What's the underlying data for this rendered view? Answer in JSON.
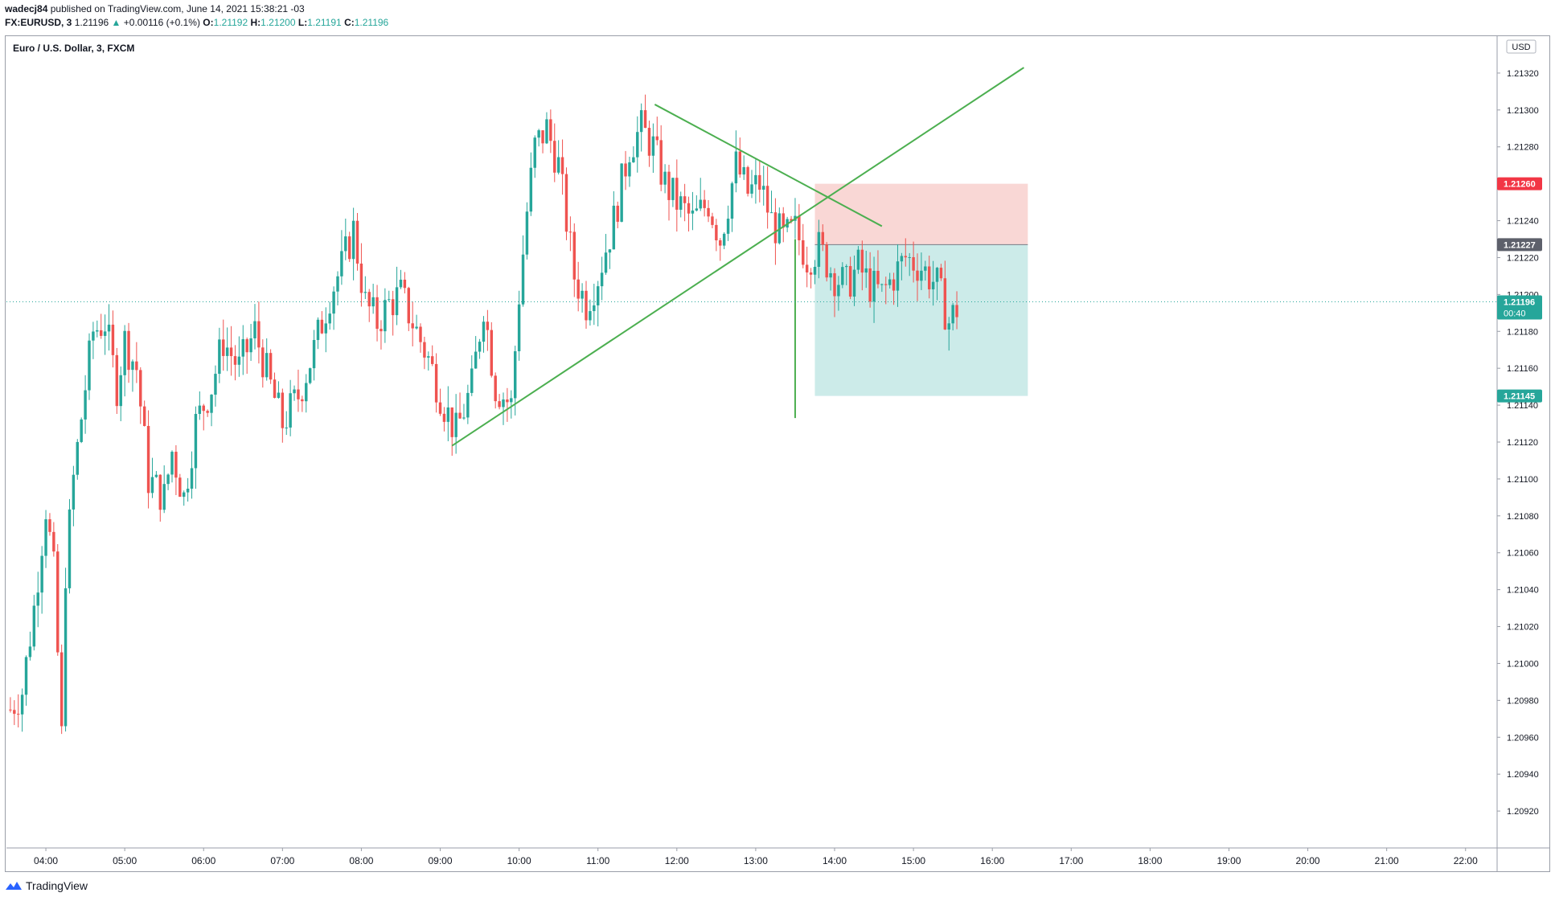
{
  "header": {
    "author": "wadecj84",
    "published": "published on TradingView.com, June 14, 2021 15:38:21 -03",
    "symbol": "FX:EURUSD, 3",
    "last": "1.21196",
    "change_arrow": "▲",
    "change": "+0.00116 (+0.1%)",
    "o_label": "O:",
    "o_val": "1.21192",
    "h_label": "H:",
    "h_val": "1.21200",
    "l_label": "L:",
    "l_val": "1.21191",
    "c_label": "C:",
    "c_val": "1.21196"
  },
  "chart_title": "Euro / U.S. Dollar, 3, FXCM",
  "currency": "USD",
  "footer": {
    "brand": "TradingView",
    "logo_icon": "tradingview-logo-icon"
  },
  "colors": {
    "up": "#26a69a",
    "down": "#ef5350",
    "line": "#4caf50",
    "stop": "#f7c9c7",
    "target": "#b7e3df",
    "tag_red": "#f23645",
    "tag_grey": "#5d606b",
    "tag_teal": "#26a69a"
  },
  "chart_data": {
    "type": "candlestick",
    "title": "Euro / U.S. Dollar, 3, FXCM",
    "ylim": [
      1.209,
      1.2134
    ],
    "y_ticks": [
      "1.20920",
      "1.20940",
      "1.20960",
      "1.20980",
      "1.21000",
      "1.21020",
      "1.21040",
      "1.21060",
      "1.21080",
      "1.21100",
      "1.21120",
      "1.21140",
      "1.21160",
      "1.21180",
      "1.21200",
      "1.21220",
      "1.21240",
      "1.21260",
      "1.21280",
      "1.21300",
      "1.21320"
    ],
    "x_ticks": [
      "04:00",
      "05:00",
      "06:00",
      "07:00",
      "08:00",
      "09:00",
      "10:00",
      "11:00",
      "12:00",
      "13:00",
      "14:00",
      "15:00",
      "16:00",
      "17:00",
      "18:00",
      "19:00",
      "20:00",
      "21:00",
      "22:00"
    ],
    "x_start_hour": 3.5,
    "x_end_hour": 22.4,
    "bar_minutes": 3,
    "path_points": [
      [
        3.55,
        1.20975
      ],
      [
        3.7,
        1.20985
      ],
      [
        3.85,
        1.2103
      ],
      [
        4.0,
        1.21085
      ],
      [
        4.1,
        1.2105
      ],
      [
        4.2,
        1.2096
      ],
      [
        4.25,
        1.2105
      ],
      [
        4.35,
        1.211
      ],
      [
        4.5,
        1.2115
      ],
      [
        4.6,
        1.2118
      ],
      [
        4.75,
        1.21185
      ],
      [
        4.9,
        1.2115
      ],
      [
        5.0,
        1.21175
      ],
      [
        5.15,
        1.2116
      ],
      [
        5.3,
        1.211
      ],
      [
        5.5,
        1.2109
      ],
      [
        5.6,
        1.21115
      ],
      [
        5.75,
        1.2109
      ],
      [
        5.9,
        1.2113
      ],
      [
        6.1,
        1.2115
      ],
      [
        6.25,
        1.21175
      ],
      [
        6.45,
        1.2116
      ],
      [
        6.65,
        1.2118
      ],
      [
        6.85,
        1.2115
      ],
      [
        7.0,
        1.2113
      ],
      [
        7.2,
        1.21145
      ],
      [
        7.4,
        1.2117
      ],
      [
        7.6,
        1.212
      ],
      [
        7.75,
        1.21215
      ],
      [
        7.9,
        1.21235
      ],
      [
        8.05,
        1.21195
      ],
      [
        8.2,
        1.21185
      ],
      [
        8.35,
        1.21195
      ],
      [
        8.5,
        1.212
      ],
      [
        8.65,
        1.21185
      ],
      [
        8.85,
        1.21165
      ],
      [
        9.05,
        1.2114
      ],
      [
        9.2,
        1.21125
      ],
      [
        9.4,
        1.2115
      ],
      [
        9.55,
        1.21195
      ],
      [
        9.7,
        1.2115
      ],
      [
        9.9,
        1.2114
      ],
      [
        10.0,
        1.212
      ],
      [
        10.1,
        1.21245
      ],
      [
        10.2,
        1.2128
      ],
      [
        10.35,
        1.2129
      ],
      [
        10.5,
        1.2127
      ],
      [
        10.6,
        1.2124
      ],
      [
        10.7,
        1.2121
      ],
      [
        10.85,
        1.21195
      ],
      [
        11.0,
        1.2121
      ],
      [
        11.2,
        1.2124
      ],
      [
        11.4,
        1.2128
      ],
      [
        11.55,
        1.2129
      ],
      [
        11.7,
        1.2128
      ],
      [
        11.85,
        1.2126
      ],
      [
        12.0,
        1.2125
      ],
      [
        12.2,
        1.2124
      ],
      [
        12.4,
        1.2125
      ],
      [
        12.55,
        1.2123
      ],
      [
        12.75,
        1.2127
      ],
      [
        12.9,
        1.21255
      ],
      [
        13.05,
        1.2126
      ],
      [
        13.2,
        1.2124
      ],
      [
        13.35,
        1.2123
      ],
      [
        13.5,
        1.21235
      ],
      [
        13.65,
        1.2122
      ],
      [
        13.8,
        1.21225
      ],
      [
        14.0,
        1.2121
      ],
      [
        14.15,
        1.21205
      ],
      [
        14.3,
        1.21215
      ],
      [
        14.45,
        1.21205
      ],
      [
        14.6,
        1.212
      ],
      [
        14.75,
        1.2121
      ],
      [
        14.9,
        1.2122
      ],
      [
        15.1,
        1.21215
      ],
      [
        15.3,
        1.21205
      ],
      [
        15.45,
        1.21185
      ],
      [
        15.6,
        1.21196
      ]
    ],
    "trend_lines": [
      {
        "x1": 9.15,
        "y1": 1.21118,
        "x2": 16.4,
        "y2": 1.21323
      },
      {
        "x1": 11.72,
        "y1": 1.21303,
        "x2": 14.6,
        "y2": 1.21237
      },
      {
        "x1": 13.5,
        "y1": 1.2123,
        "x2": 13.5,
        "y2": 1.21133
      }
    ],
    "position": {
      "x1": 13.75,
      "x2": 16.45,
      "stop": 1.2126,
      "entry": 1.21227,
      "target": 1.21145
    },
    "price_tags": [
      {
        "label": "1.21260",
        "value": 1.2126,
        "kind": "stop"
      },
      {
        "label": "1.21227",
        "value": 1.21227,
        "kind": "entry"
      },
      {
        "label": "1.21196",
        "sub": "00:40",
        "value": 1.21196,
        "kind": "last"
      },
      {
        "label": "1.21145",
        "value": 1.21145,
        "kind": "target"
      }
    ],
    "last_price": 1.21196
  }
}
